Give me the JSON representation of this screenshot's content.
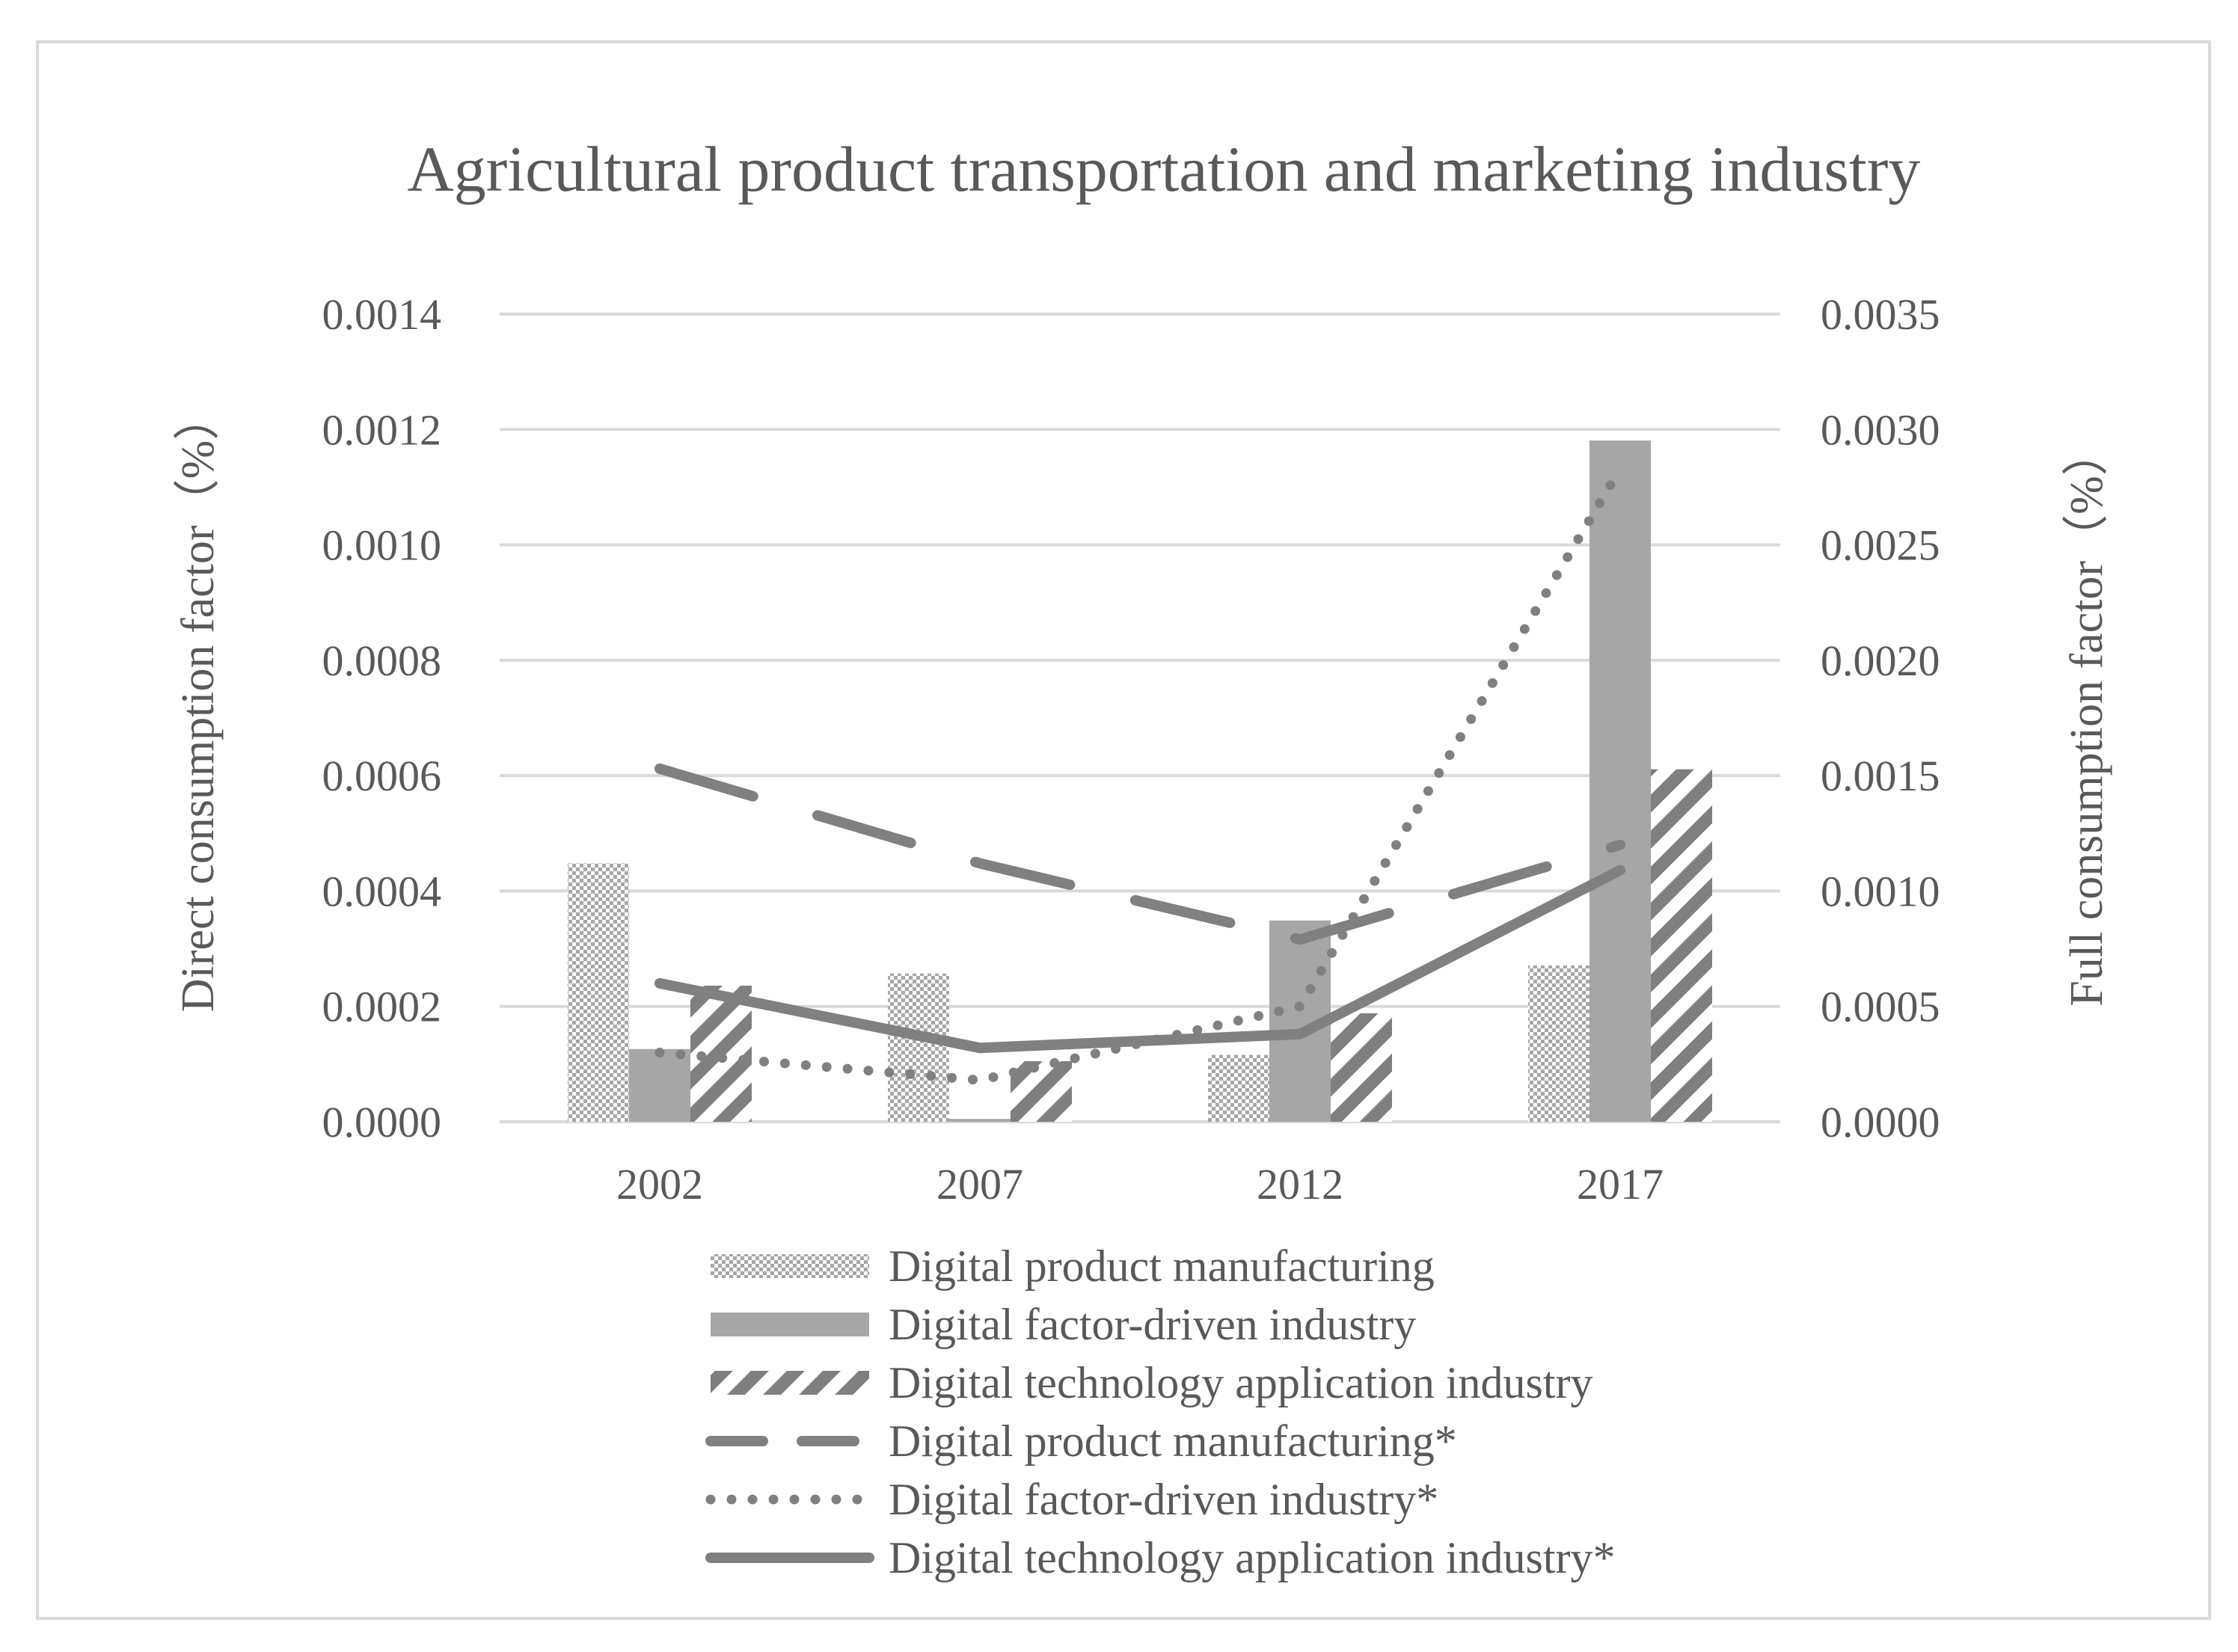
{
  "chart_data": {
    "type": "bar",
    "title": "Agricultural product transportation and marketing industry",
    "categories": [
      "2002",
      "2007",
      "2012",
      "2017"
    ],
    "ylabel": "Direct consumption factor（%）",
    "y2label": "Full consumption factor（%）",
    "ylim": [
      0,
      0.0014
    ],
    "y2lim": [
      0,
      0.0035
    ],
    "yticks": [
      "0.0000",
      "0.0002",
      "0.0004",
      "0.0006",
      "0.0008",
      "0.0010",
      "0.0012",
      "0.0014"
    ],
    "y2ticks": [
      "0.0000",
      "0.0005",
      "0.0010",
      "0.0015",
      "0.0020",
      "0.0025",
      "0.0030",
      "0.0035"
    ],
    "grid": true,
    "legend_position": "bottom",
    "series": [
      {
        "name": "Digital product manufacturing",
        "kind": "bar",
        "axis": "left",
        "pattern": "checker",
        "values": [
          0.000448,
          0.000257,
          0.000116,
          0.000271
        ]
      },
      {
        "name": "Digital factor-driven industry",
        "kind": "bar",
        "axis": "left",
        "pattern": "solid",
        "values": [
          0.000126,
          5e-06,
          0.000349,
          0.001181
        ]
      },
      {
        "name": "Digital technology application industry",
        "kind": "bar",
        "axis": "left",
        "pattern": "diagonal",
        "values": [
          0.000236,
          0.000105,
          0.000188,
          0.000611
        ]
      },
      {
        "name": "Digital product manufacturing*",
        "kind": "line",
        "axis": "right",
        "dash": "long-dash",
        "values": [
          0.00153,
          0.00112,
          0.00079,
          0.0012
        ]
      },
      {
        "name": "Digital factor-driven industry*",
        "kind": "line",
        "axis": "right",
        "dash": "dotted",
        "values": [
          0.0003,
          0.00018,
          0.0005,
          0.00283
        ]
      },
      {
        "name": "Digital technology application industry*",
        "kind": "line",
        "axis": "right",
        "dash": "solid",
        "values": [
          0.0006,
          0.00032,
          0.00038,
          0.00109
        ]
      }
    ],
    "colors": {
      "bar": "#a6a6a6",
      "bar_dark": "#7f7f7f",
      "line": "#808080",
      "grid": "#d9d9d9",
      "text": "#595959",
      "border": "#d9d9d9"
    }
  }
}
